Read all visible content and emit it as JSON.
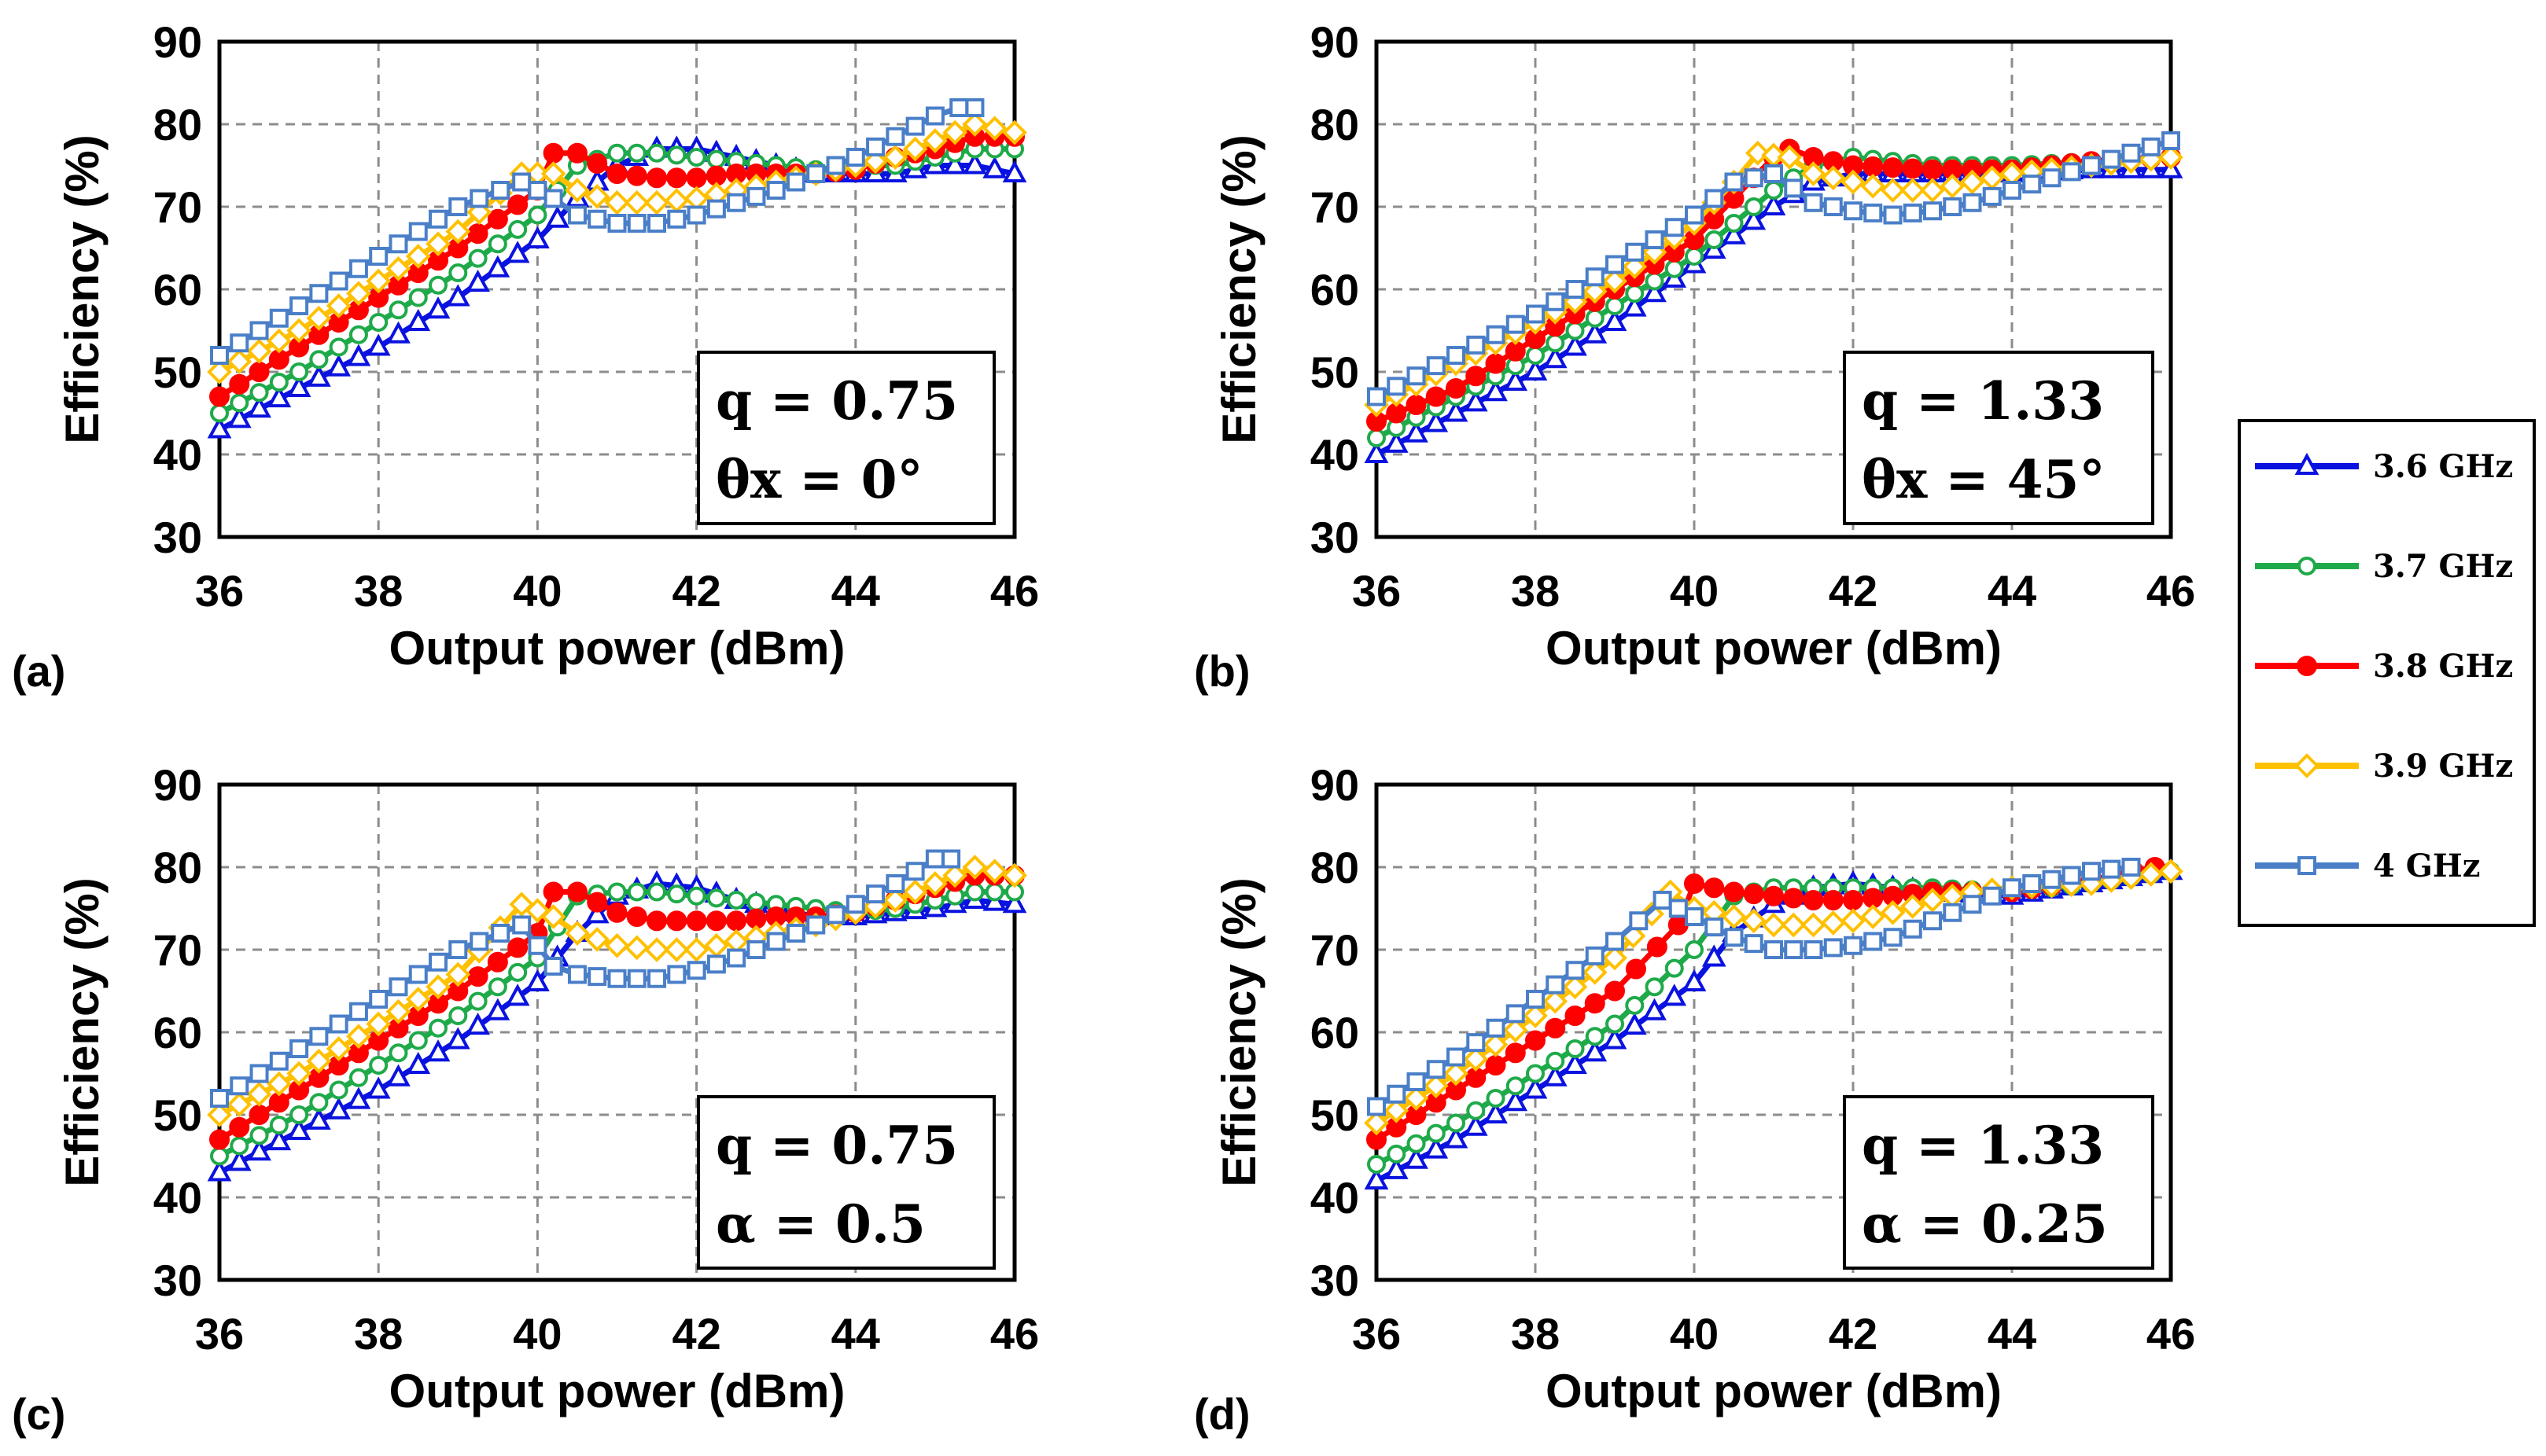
{
  "figure": {
    "legend": {
      "entries": [
        {
          "label": "3.6 GHz",
          "color": "#0a12e0",
          "marker": "triangle"
        },
        {
          "label": "3.7 GHz",
          "color": "#1faa4a",
          "marker": "circle"
        },
        {
          "label": "3.8 GHz",
          "color": "#ff0000",
          "marker": "circle-filled"
        },
        {
          "label": "3.9 GHz",
          "color": "#ffc000",
          "marker": "diamond"
        },
        {
          "label": "4 GHz",
          "color": "#4a7fc8",
          "marker": "square"
        }
      ]
    }
  },
  "chart_data": [
    {
      "type": "line",
      "panel_label": "(a)",
      "xlabel": "Output power (dBm)",
      "ylabel": "Efficiency (%)",
      "xlim": [
        36,
        46
      ],
      "ylim": [
        30,
        90
      ],
      "xticks": [
        36,
        38,
        40,
        42,
        44,
        46
      ],
      "yticks": [
        30,
        40,
        50,
        60,
        70,
        80,
        90
      ],
      "grid": true,
      "annotation": [
        "q = 0.75",
        "θx = 0°"
      ],
      "series": [
        {
          "name": "3.6 GHz",
          "x": [
            36,
            37,
            38,
            39,
            40,
            40.5,
            41,
            41.5,
            42,
            42.5,
            43,
            43.5,
            44,
            44.5,
            45,
            45.5,
            46
          ],
          "y": [
            43,
            48,
            53,
            59,
            66,
            71,
            75,
            77,
            77,
            76,
            75,
            74,
            74,
            74,
            75,
            75,
            74
          ]
        },
        {
          "name": "3.7 GHz",
          "x": [
            36,
            37,
            38,
            39,
            40,
            40.5,
            41,
            41.5,
            42,
            42.5,
            43,
            43.5,
            44,
            44.5,
            45,
            45.5,
            46
          ],
          "y": [
            45,
            50,
            56,
            62,
            69,
            75,
            76.5,
            76.5,
            76,
            75.5,
            75,
            74.5,
            75,
            75,
            76,
            77,
            77
          ]
        },
        {
          "name": "3.8 GHz",
          "x": [
            36,
            37,
            38,
            39,
            40,
            40.2,
            40.5,
            41,
            41.5,
            42,
            42.5,
            43,
            43.5,
            44,
            44.5,
            45,
            45.5,
            46
          ],
          "y": [
            47,
            53,
            59,
            65,
            72,
            76.5,
            76.5,
            74,
            73.5,
            73.5,
            74,
            74,
            74,
            74.5,
            76,
            77,
            78.5,
            78.5
          ]
        },
        {
          "name": "3.9 GHz",
          "x": [
            36,
            37,
            38,
            39,
            39.8,
            40.2,
            40.5,
            41,
            41.5,
            42,
            42.5,
            43,
            43.5,
            44,
            44.5,
            45,
            45.5,
            46
          ],
          "y": [
            50,
            55,
            61,
            67,
            74,
            74,
            72,
            70.5,
            70.5,
            71,
            72,
            73,
            74,
            75,
            76,
            78,
            80,
            79
          ]
        },
        {
          "name": "4 GHz",
          "x": [
            36,
            37,
            38,
            39,
            39.8,
            40.2,
            40.5,
            41,
            41.5,
            42,
            42.5,
            43,
            43.5,
            44,
            44.5,
            45,
            45.3,
            45.5
          ],
          "y": [
            52,
            58,
            64,
            70,
            73,
            71,
            69,
            68,
            68,
            69,
            70.5,
            72,
            74,
            76,
            78.5,
            81,
            82,
            82
          ]
        }
      ]
    },
    {
      "type": "line",
      "panel_label": "(b)",
      "xlabel": "Output power (dBm)",
      "ylabel": "Efficiency (%)",
      "xlim": [
        36,
        46
      ],
      "ylim": [
        30,
        90
      ],
      "xticks": [
        36,
        38,
        40,
        42,
        44,
        46
      ],
      "yticks": [
        30,
        40,
        50,
        60,
        70,
        80,
        90
      ],
      "grid": true,
      "annotation": [
        "q = 1.33",
        "θx = 45°"
      ],
      "series": [
        {
          "name": "3.6 GHz",
          "x": [
            36,
            37,
            38,
            39,
            40,
            41,
            41.5,
            42,
            43,
            44,
            45,
            46
          ],
          "y": [
            40,
            45,
            50,
            56,
            63,
            70,
            73,
            74,
            74,
            74,
            74.5,
            74.5
          ]
        },
        {
          "name": "3.7 GHz",
          "x": [
            36,
            37,
            38,
            39,
            40,
            40.5,
            41,
            41.5,
            42,
            43,
            44,
            45,
            46
          ],
          "y": [
            42,
            47,
            52,
            58,
            64,
            68,
            72,
            75,
            76,
            75,
            75,
            75.5,
            76
          ]
        },
        {
          "name": "3.8 GHz",
          "x": [
            36,
            37,
            38,
            39,
            40,
            40.5,
            41,
            41.2,
            41.5,
            42,
            43,
            44,
            45,
            46
          ],
          "y": [
            44,
            48,
            54,
            60,
            66,
            71,
            76,
            77,
            76,
            75,
            74.5,
            74.5,
            75.5,
            76
          ]
        },
        {
          "name": "3.9 GHz",
          "x": [
            36,
            37,
            38,
            39,
            40,
            40.5,
            40.8,
            41.2,
            41.5,
            42,
            42.5,
            43,
            43.5,
            44,
            45,
            46
          ],
          "y": [
            46,
            51,
            56,
            61,
            68,
            73,
            76.5,
            76,
            74,
            73,
            72,
            72,
            73,
            74,
            75,
            76
          ]
        },
        {
          "name": "4 GHz",
          "x": [
            36,
            37,
            38,
            39,
            40,
            40.5,
            41,
            41.5,
            42,
            42.5,
            43,
            43.5,
            44,
            44.5,
            45,
            45.5,
            46
          ],
          "y": [
            47,
            52,
            57,
            63,
            69,
            73,
            74,
            70.5,
            69.5,
            69,
            69.5,
            70.5,
            72,
            73.5,
            75,
            76.5,
            78
          ]
        }
      ]
    },
    {
      "type": "line",
      "panel_label": "(c)",
      "xlabel": "Output power (dBm)",
      "ylabel": "Efficiency (%)",
      "xlim": [
        36,
        46
      ],
      "ylim": [
        30,
        90
      ],
      "xticks": [
        36,
        38,
        40,
        42,
        44,
        46
      ],
      "yticks": [
        30,
        40,
        50,
        60,
        70,
        80,
        90
      ],
      "grid": true,
      "annotation": [
        "q = 0.75",
        "α = 0.5"
      ],
      "series": [
        {
          "name": "3.6 GHz",
          "x": [
            36,
            37,
            38,
            39,
            40,
            40.5,
            41,
            41.5,
            42,
            42.5,
            43,
            43.5,
            44,
            44.5,
            45,
            45.5,
            46
          ],
          "y": [
            43,
            48,
            53,
            59,
            66,
            72,
            76.5,
            78,
            77.5,
            76,
            75,
            74,
            74,
            74.5,
            75,
            76,
            75.5
          ]
        },
        {
          "name": "3.7 GHz",
          "x": [
            36,
            37,
            38,
            39,
            40,
            40.5,
            41,
            41.5,
            42,
            42.5,
            43,
            43.5,
            44,
            44.5,
            45,
            45.5,
            46
          ],
          "y": [
            45,
            50,
            56,
            62,
            69,
            76.5,
            77,
            77,
            76.5,
            76,
            75.5,
            75,
            74.5,
            75,
            76,
            77,
            77
          ]
        },
        {
          "name": "3.8 GHz",
          "x": [
            36,
            37,
            38,
            39,
            40,
            40.2,
            40.5,
            41,
            41.5,
            42,
            42.5,
            43,
            43.5,
            44,
            44.5,
            45,
            45.5,
            46
          ],
          "y": [
            47,
            53,
            59,
            65,
            72,
            77,
            77,
            74.5,
            73.5,
            73.5,
            73.5,
            74,
            74,
            74.5,
            76,
            77.5,
            79,
            79
          ]
        },
        {
          "name": "3.9 GHz",
          "x": [
            36,
            37,
            38,
            39,
            39.8,
            40.2,
            40.5,
            41,
            41.5,
            42,
            42.5,
            43,
            43.5,
            44,
            44.5,
            45,
            45.5,
            46
          ],
          "y": [
            50,
            55,
            61,
            67,
            75.5,
            74,
            72,
            70.5,
            70,
            70,
            71,
            72,
            73,
            74.5,
            76,
            78,
            80,
            79
          ]
        },
        {
          "name": "4 GHz",
          "x": [
            36,
            37,
            38,
            39,
            39.8,
            40.2,
            40.5,
            41,
            41.5,
            42,
            42.5,
            43,
            43.5,
            44,
            44.5,
            45,
            45.2
          ],
          "y": [
            52,
            58,
            64,
            70,
            73,
            68,
            67,
            66.5,
            66.5,
            67.5,
            69,
            71,
            73,
            75.5,
            78,
            81,
            81
          ]
        }
      ]
    },
    {
      "type": "line",
      "panel_label": "(d)",
      "xlabel": "Output power (dBm)",
      "ylabel": "Efficiency (%)",
      "xlim": [
        36,
        46
      ],
      "ylim": [
        30,
        90
      ],
      "xticks": [
        36,
        38,
        40,
        42,
        44,
        46
      ],
      "yticks": [
        30,
        40,
        50,
        60,
        70,
        80,
        90
      ],
      "grid": true,
      "annotation": [
        "q = 1.33",
        "α = 0.25"
      ],
      "series": [
        {
          "name": "3.6 GHz",
          "x": [
            36,
            37,
            38,
            39,
            40,
            40.5,
            41,
            41.5,
            42,
            43,
            44,
            45,
            46
          ],
          "y": [
            42,
            47,
            53,
            59,
            66,
            72,
            75.5,
            77.5,
            78,
            77,
            76.5,
            78,
            79.5
          ]
        },
        {
          "name": "3.7 GHz",
          "x": [
            36,
            37,
            38,
            39,
            40,
            40.5,
            41,
            41.5,
            42,
            43,
            44,
            45,
            46
          ],
          "y": [
            44,
            49,
            55,
            61,
            70,
            76.5,
            77.5,
            77.5,
            77.5,
            77.5,
            77,
            78,
            79.5
          ]
        },
        {
          "name": "3.8 GHz",
          "x": [
            36,
            37,
            38,
            39,
            39.8,
            40,
            40.5,
            41,
            41.5,
            42,
            42.5,
            43,
            44,
            45,
            45.8
          ],
          "y": [
            47,
            53,
            59,
            65,
            73,
            78,
            77,
            76.5,
            76,
            76,
            76.5,
            77,
            77,
            78.5,
            80
          ]
        },
        {
          "name": "3.9 GHz",
          "x": [
            36,
            37,
            38,
            39,
            39.7,
            40,
            40.5,
            41,
            41.5,
            42,
            42.5,
            43,
            43.5,
            44,
            45,
            46
          ],
          "y": [
            49,
            55,
            62,
            69,
            77,
            75,
            74,
            73,
            73,
            73.5,
            74.5,
            76,
            77,
            77.5,
            78,
            79.5
          ]
        },
        {
          "name": "4 GHz",
          "x": [
            36,
            37,
            38,
            39,
            39.6,
            40,
            40.5,
            41,
            41.5,
            42,
            42.5,
            43,
            43.5,
            44,
            44.5,
            45,
            45.5
          ],
          "y": [
            51,
            57,
            64,
            71,
            76,
            74,
            71.5,
            70,
            70,
            70.5,
            71.5,
            73.5,
            75.5,
            77.5,
            78.5,
            79.5,
            80
          ]
        }
      ]
    }
  ]
}
